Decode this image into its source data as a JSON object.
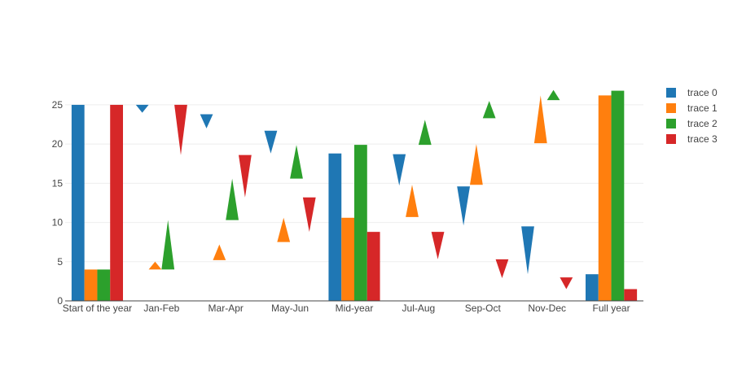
{
  "chart_data": {
    "type": "waterfall",
    "categories": [
      "Start of the year",
      "Jan-Feb",
      "Mar-Apr",
      "May-Jun",
      "Mid-year",
      "Jul-Aug",
      "Sep-Oct",
      "Nov-Dec",
      "Full year"
    ],
    "ylim": [
      0,
      28
    ],
    "yticks": [
      0,
      5,
      10,
      15,
      20,
      25
    ],
    "grid": true,
    "legend_position": "top-right",
    "series": [
      {
        "name": "trace 0",
        "color": "#1f77b4",
        "bars": [
          {
            "category": "Start of the year",
            "kind": "total",
            "base": 0,
            "end": 25
          },
          {
            "category": "Jan-Feb",
            "kind": "decrease",
            "base": 25,
            "end": 24
          },
          {
            "category": "Mar-Apr",
            "kind": "decrease",
            "base": 23.8,
            "end": 22
          },
          {
            "category": "May-Jun",
            "kind": "decrease",
            "base": 21.7,
            "end": 18.8
          },
          {
            "category": "Mid-year",
            "kind": "total",
            "base": 0,
            "end": 18.8
          },
          {
            "category": "Jul-Aug",
            "kind": "decrease",
            "base": 18.7,
            "end": 14.7
          },
          {
            "category": "Sep-Oct",
            "kind": "decrease",
            "base": 14.6,
            "end": 9.6
          },
          {
            "category": "Nov-Dec",
            "kind": "decrease",
            "base": 9.5,
            "end": 3.4
          },
          {
            "category": "Full year",
            "kind": "total",
            "base": 0,
            "end": 3.4
          }
        ]
      },
      {
        "name": "trace 1",
        "color": "#ff7f0e",
        "bars": [
          {
            "category": "Start of the year",
            "kind": "total",
            "base": 0,
            "end": 4
          },
          {
            "category": "Jan-Feb",
            "kind": "increase",
            "base": 4,
            "end": 5
          },
          {
            "category": "Mar-Apr",
            "kind": "increase",
            "base": 5.2,
            "end": 7.2
          },
          {
            "category": "May-Jun",
            "kind": "increase",
            "base": 7.5,
            "end": 10.6
          },
          {
            "category": "Mid-year",
            "kind": "total",
            "base": 0,
            "end": 10.6
          },
          {
            "category": "Jul-Aug",
            "kind": "increase",
            "base": 10.7,
            "end": 14.8
          },
          {
            "category": "Sep-Oct",
            "kind": "increase",
            "base": 14.8,
            "end": 20
          },
          {
            "category": "Nov-Dec",
            "kind": "increase",
            "base": 20.1,
            "end": 26.2
          },
          {
            "category": "Full year",
            "kind": "total",
            "base": 0,
            "end": 26.2
          }
        ]
      },
      {
        "name": "trace 2",
        "color": "#2ca02c",
        "bars": [
          {
            "category": "Start of the year",
            "kind": "total",
            "base": 0,
            "end": 4
          },
          {
            "category": "Jan-Feb",
            "kind": "increase",
            "base": 4,
            "end": 10.3
          },
          {
            "category": "Mar-Apr",
            "kind": "increase",
            "base": 10.3,
            "end": 15.6
          },
          {
            "category": "May-Jun",
            "kind": "increase",
            "base": 15.6,
            "end": 19.9
          },
          {
            "category": "Mid-year",
            "kind": "total",
            "base": 0,
            "end": 19.9
          },
          {
            "category": "Jul-Aug",
            "kind": "increase",
            "base": 19.9,
            "end": 23.1
          },
          {
            "category": "Sep-Oct",
            "kind": "increase",
            "base": 23.3,
            "end": 25.5
          },
          {
            "category": "Nov-Dec",
            "kind": "increase",
            "base": 25.6,
            "end": 26.9
          },
          {
            "category": "Full year",
            "kind": "total",
            "base": 0,
            "end": 26.8
          }
        ]
      },
      {
        "name": "trace 3",
        "color": "#d62728",
        "bars": [
          {
            "category": "Start of the year",
            "kind": "total",
            "base": 0,
            "end": 25
          },
          {
            "category": "Jan-Feb",
            "kind": "decrease",
            "base": 25,
            "end": 18.6
          },
          {
            "category": "Mar-Apr",
            "kind": "decrease",
            "base": 18.6,
            "end": 13.2
          },
          {
            "category": "May-Jun",
            "kind": "decrease",
            "base": 13.2,
            "end": 8.8
          },
          {
            "category": "Mid-year",
            "kind": "total",
            "base": 0,
            "end": 8.8
          },
          {
            "category": "Jul-Aug",
            "kind": "decrease",
            "base": 8.8,
            "end": 5.3
          },
          {
            "category": "Sep-Oct",
            "kind": "decrease",
            "base": 5.3,
            "end": 2.9
          },
          {
            "category": "Nov-Dec",
            "kind": "decrease",
            "base": 3,
            "end": 1.5
          },
          {
            "category": "Full year",
            "kind": "total",
            "base": 0,
            "end": 1.5
          }
        ]
      }
    ]
  }
}
